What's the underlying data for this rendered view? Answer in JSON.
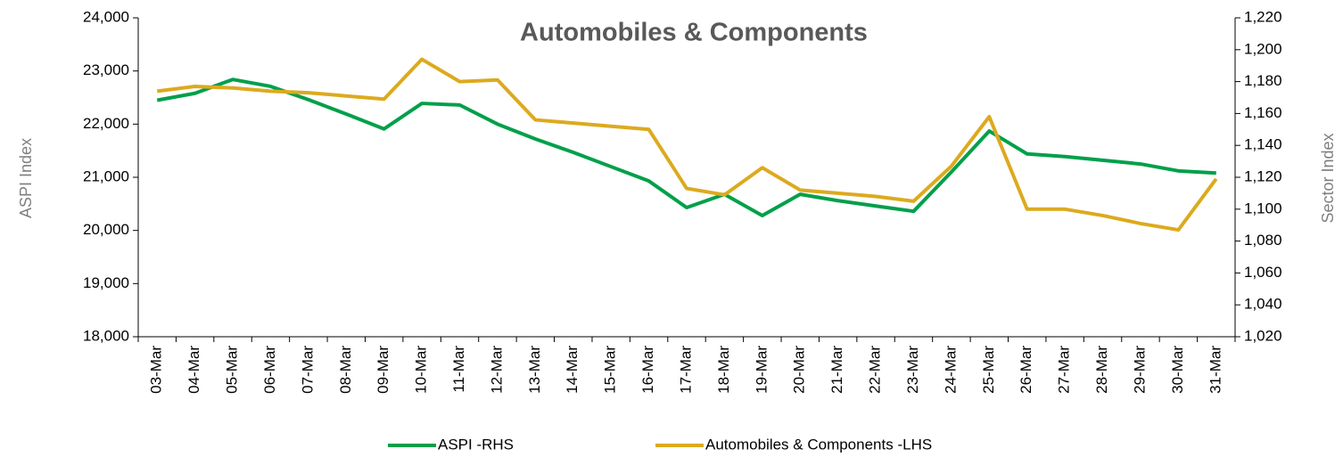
{
  "chart_data": {
    "type": "line",
    "title": "Automobiles & Components",
    "ylabel": "ASPI Index",
    "y2label": "Sector Index",
    "categories": [
      "03-Mar",
      "04-Mar",
      "05-Mar",
      "06-Mar",
      "07-Mar",
      "08-Mar",
      "09-Mar",
      "10-Mar",
      "11-Mar",
      "12-Mar",
      "13-Mar",
      "14-Mar",
      "15-Mar",
      "16-Mar",
      "17-Mar",
      "18-Mar",
      "19-Mar",
      "20-Mar",
      "21-Mar",
      "22-Mar",
      "23-Mar",
      "24-Mar",
      "25-Mar",
      "26-Mar",
      "27-Mar",
      "28-Mar",
      "29-Mar",
      "30-Mar",
      "31-Mar"
    ],
    "series": [
      {
        "name": "ASPI -RHS",
        "color": "#00a04a",
        "values": [
          22450,
          22580,
          22840,
          22710,
          22460,
          22190,
          21910,
          22390,
          22360,
          22000,
          21720,
          21470,
          21200,
          20930,
          20430,
          20680,
          20280,
          20680,
          20560,
          20460,
          20360,
          21100,
          21870,
          21440,
          21390,
          21320,
          21250,
          21120,
          21080
        ]
      },
      {
        "name": "Automobiles & Components -LHS",
        "color": "#dcaa1e",
        "axis": "y2",
        "values": [
          1174,
          1177,
          1176,
          1174,
          1173,
          1171,
          1169,
          1194,
          1180,
          1181,
          1156,
          1154,
          1152,
          1150,
          1113,
          1109,
          1126,
          1112,
          1110,
          1108,
          1105,
          1127,
          1158,
          1100,
          1100,
          1096,
          1091,
          1087,
          1119
        ]
      }
    ],
    "ylim": [
      18000,
      24000
    ],
    "yticks": [
      {
        "value": 18000,
        "label": "18,000"
      },
      {
        "value": 19000,
        "label": "19,000"
      },
      {
        "value": 20000,
        "label": "20,000"
      },
      {
        "value": 21000,
        "label": "21,000"
      },
      {
        "value": 22000,
        "label": "22,000"
      },
      {
        "value": 23000,
        "label": "23,000"
      },
      {
        "value": 24000,
        "label": "24,000"
      }
    ],
    "y2lim": [
      1020,
      1220
    ],
    "y2ticks": [
      {
        "value": 1020,
        "label": "1,020"
      },
      {
        "value": 1040,
        "label": "1,040"
      },
      {
        "value": 1060,
        "label": "1,060"
      },
      {
        "value": 1080,
        "label": "1,080"
      },
      {
        "value": 1100,
        "label": "1,100"
      },
      {
        "value": 1120,
        "label": "1,120"
      },
      {
        "value": 1140,
        "label": "1,140"
      },
      {
        "value": 1160,
        "label": "1,160"
      },
      {
        "value": 1180,
        "label": "1,180"
      },
      {
        "value": 1200,
        "label": "1,200"
      },
      {
        "value": 1220,
        "label": "1,220"
      }
    ],
    "grid": false,
    "legend": "bottom"
  }
}
